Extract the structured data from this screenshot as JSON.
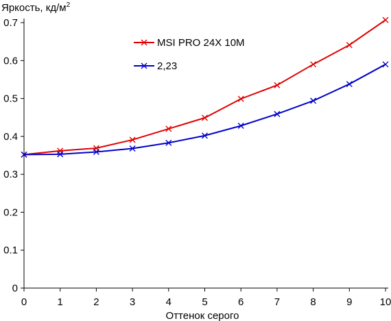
{
  "chart_data": {
    "type": "line",
    "ylabel": "Яркость, кд/м",
    "ylabel_superscript": "2",
    "xlabel": "Оттенок серого",
    "xlim": [
      0,
      10
    ],
    "ylim": [
      0,
      0.7
    ],
    "x_ticks": [
      "0",
      "1",
      "2",
      "3",
      "4",
      "5",
      "6",
      "7",
      "8",
      "9",
      "10"
    ],
    "y_ticks": [
      "0",
      "0.1",
      "0.2",
      "0.3",
      "0.4",
      "0.5",
      "0.6",
      "0.7"
    ],
    "grid": false,
    "legend_position": "top-center",
    "x": [
      0,
      1,
      2,
      3,
      4,
      5,
      6,
      7,
      8,
      9,
      10
    ],
    "series": [
      {
        "name": "MSI PRO 24X 10M",
        "color": "#e00000",
        "marker": "x",
        "values": [
          0.352,
          0.362,
          0.369,
          0.391,
          0.42,
          0.449,
          0.499,
          0.535,
          0.59,
          0.641,
          0.707
        ]
      },
      {
        "name": "2,23",
        "color": "#0000cc",
        "marker": "x",
        "values": [
          0.352,
          0.353,
          0.359,
          0.368,
          0.383,
          0.402,
          0.428,
          0.459,
          0.494,
          0.538,
          0.59
        ]
      }
    ]
  }
}
